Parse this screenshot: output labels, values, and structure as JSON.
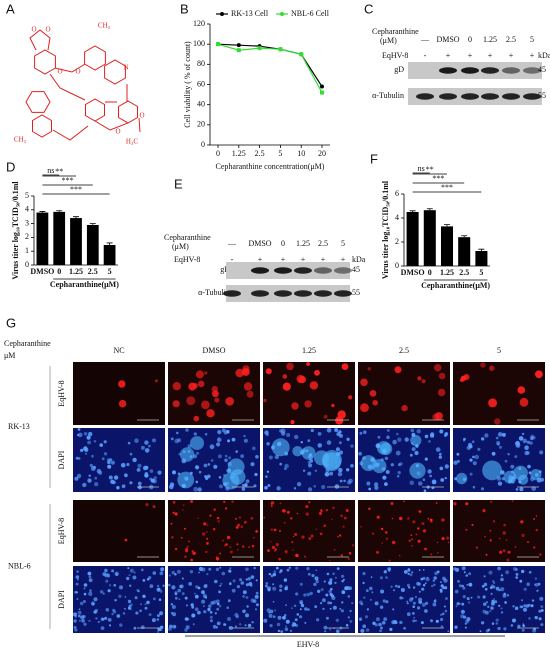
{
  "labels": [
    "A",
    "B",
    "C",
    "D",
    "E",
    "F",
    "G"
  ],
  "structure": {
    "atoms": [
      "O",
      "O",
      "CH₃",
      "N",
      "O",
      "O",
      "CH₃",
      "O",
      "O",
      "H₃C"
    ]
  },
  "panel_B": {
    "type": "line",
    "ylabel": "Cell viability ( % of count)",
    "xlabel": "Cepharanthine concentration(μM)",
    "categories": [
      "0",
      "1.25",
      "2.5",
      "5",
      "10",
      "20"
    ],
    "ylim": [
      0,
      120
    ],
    "yticks": [
      0,
      20,
      40,
      60,
      80,
      100,
      120
    ],
    "series": [
      {
        "name": "RK-13 Cell",
        "color": "#000000",
        "values": [
          100,
          99,
          98,
          95,
          90,
          58
        ]
      },
      {
        "name": "NBL-6 Cell",
        "color": "#33dd33",
        "values": [
          100,
          94,
          96,
          95,
          90,
          52
        ]
      }
    ]
  },
  "panel_C": {
    "title": "Cepharanthine",
    "unit": "(μM)",
    "lanes": [
      "—",
      "DMSO",
      "0",
      "1.25",
      "2.5",
      "5"
    ],
    "treatment": "EqHV-8",
    "signs": [
      "-",
      "+",
      "+",
      "+",
      "+",
      "+"
    ],
    "kda": "kDa",
    "rows": [
      {
        "name": "gD",
        "size": 45
      },
      {
        "name": "α-Tubulin",
        "size": 55
      }
    ]
  },
  "panel_D": {
    "type": "bar",
    "ylabel": "Virus titer log₁₀TCID₅₀/0.1ml",
    "xlabel": "Cepharanthine(μM)",
    "categories": [
      "DMSO",
      "0",
      "1.25",
      "2.5",
      "5"
    ],
    "values": [
      3.8,
      3.85,
      3.4,
      2.9,
      1.45
    ],
    "errors": [
      0.08,
      0.08,
      0.1,
      0.1,
      0.15
    ],
    "ylim": [
      0,
      5
    ],
    "yticks": [
      0,
      1,
      2,
      3,
      4,
      5
    ],
    "significance": [
      "ns",
      "**",
      "***",
      "***"
    ],
    "color": "#000000"
  },
  "panel_E": {
    "title": "Cepharanthine",
    "unit": "(μM)",
    "lanes": [
      "—",
      "DMSO",
      "0",
      "1.25",
      "2.5",
      "5"
    ],
    "treatment": "EqHV-8",
    "signs": [
      "-",
      "+",
      "+",
      "+",
      "+",
      "+"
    ],
    "kda": "kDa",
    "rows": [
      {
        "name": "gD",
        "size": 45
      },
      {
        "name": "α-Tubulin",
        "size": 55
      }
    ]
  },
  "panel_F": {
    "type": "bar",
    "ylabel": "Virus titer log₁₀TCID₅₀/0.1ml",
    "xlabel": "Cepharanthine(μM)",
    "categories": [
      "DMSO",
      "0",
      "1.25",
      "2.5",
      "5"
    ],
    "values": [
      4.5,
      4.65,
      3.3,
      2.4,
      1.25
    ],
    "errors": [
      0.1,
      0.12,
      0.15,
      0.12,
      0.15
    ],
    "ylim": [
      0,
      6
    ],
    "yticks": [
      0,
      2,
      4,
      6
    ],
    "significance": [
      "ns",
      "**",
      "***",
      "***"
    ],
    "color": "#000000"
  },
  "panel_G": {
    "title": "Cepharanthine",
    "unit": "μM",
    "columns": [
      "NC",
      "DMSO",
      "1.25",
      "2.5",
      "5"
    ],
    "groups": [
      {
        "name": "RK-13",
        "rows": [
          "EqHV-8",
          "DAPI"
        ]
      },
      {
        "name": "NBL-6",
        "rows": [
          "EqHV-8",
          "DAPI"
        ]
      }
    ],
    "footer": "EHV-8"
  }
}
